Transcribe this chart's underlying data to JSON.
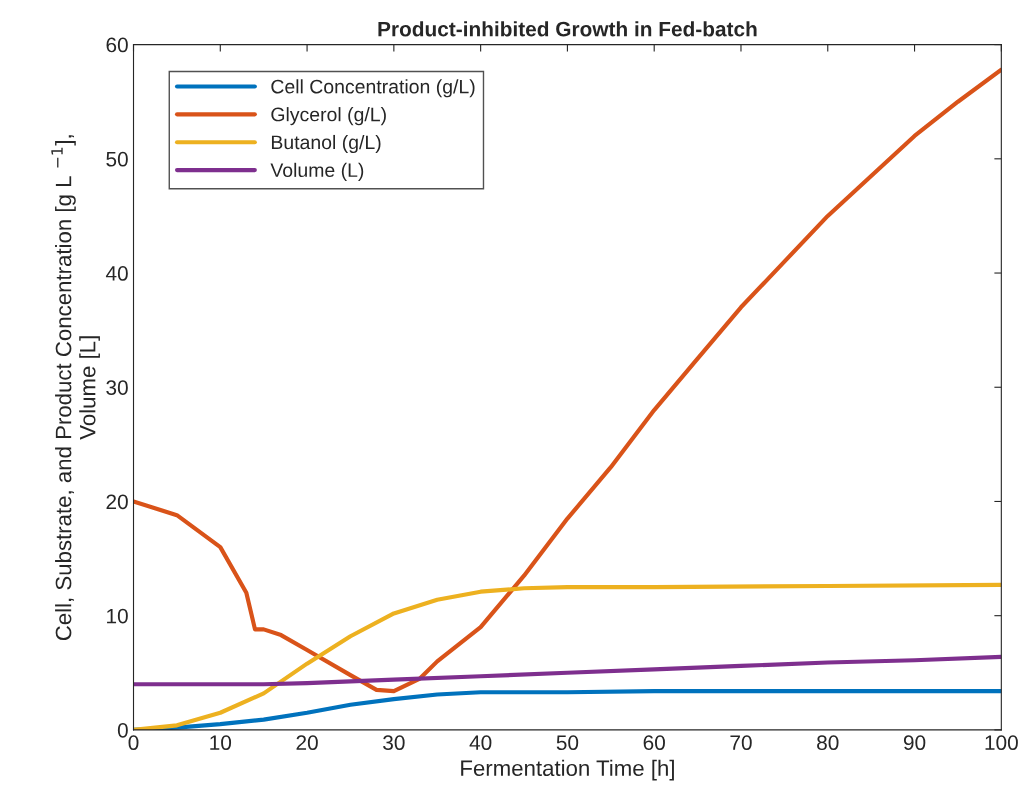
{
  "chart_data": {
    "type": "line",
    "title": "Product-inhibited Growth in Fed-batch",
    "xlabel": "Fermentation Time [h]",
    "ylabel": "Cell, Substrate, and Product Concentration [g L $^{−1}$],\nVolume [L]",
    "xlim": [
      0,
      100
    ],
    "xticks": [
      0,
      10,
      20,
      30,
      40,
      50,
      60,
      70,
      80,
      90,
      100
    ],
    "ylim": [
      0,
      60
    ],
    "yticks": [
      0,
      10,
      20,
      30,
      40,
      50,
      60
    ],
    "grid": false,
    "legend": "top left",
    "marker": "none",
    "line_style": "solid",
    "series": [
      {
        "name": "Cell Concentration (g/L)",
        "color": "#0072bd",
        "x": [
          0,
          5,
          10,
          15,
          20,
          25,
          30,
          35,
          40,
          50,
          60,
          80,
          100
        ],
        "values": [
          0,
          0.2,
          0.5,
          0.9,
          1.5,
          2.2,
          2.7,
          3.1,
          3.3,
          3.3,
          3.4,
          3.4,
          3.4
        ]
      },
      {
        "name": "Glycerol (g/L)",
        "color": "#d95319",
        "x": [
          0,
          5,
          10,
          13,
          14,
          15,
          17,
          20,
          25,
          28,
          30,
          33,
          35,
          40,
          45,
          50,
          55,
          60,
          65,
          70,
          75,
          80,
          85,
          90,
          95,
          100
        ],
        "values": [
          20,
          18.8,
          16,
          12,
          8.8,
          8.8,
          8.3,
          7,
          4.8,
          3.5,
          3.4,
          4.5,
          6,
          9,
          13.5,
          18.5,
          23,
          28,
          32.5,
          37,
          41,
          45,
          48.5,
          52,
          55,
          57.8
        ]
      },
      {
        "name": "Butanol (g/L)",
        "color": "#edb120",
        "x": [
          0,
          5,
          10,
          15,
          20,
          25,
          30,
          35,
          40,
          45,
          50,
          60,
          80,
          100
        ],
        "values": [
          0,
          0.4,
          1.5,
          3.2,
          5.8,
          8.2,
          10.2,
          11.4,
          12.1,
          12.4,
          12.5,
          12.5,
          12.6,
          12.7
        ]
      },
      {
        "name": "Volume (L)",
        "color": "#7e2f8e",
        "x": [
          0,
          15,
          20,
          30,
          40,
          50,
          60,
          70,
          80,
          90,
          100
        ],
        "values": [
          4,
          4,
          4.1,
          4.4,
          4.7,
          5,
          5.3,
          5.6,
          5.9,
          6.1,
          6.4
        ]
      }
    ]
  }
}
